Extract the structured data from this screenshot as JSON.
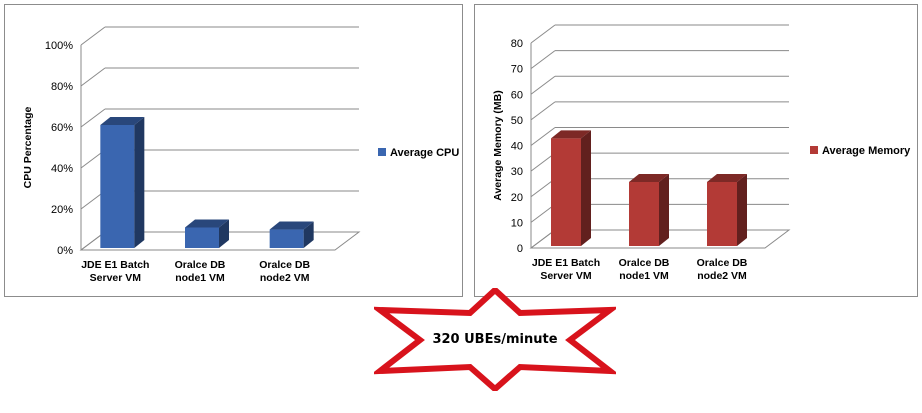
{
  "chart_data": [
    {
      "type": "bar",
      "categories": [
        "JDE E1 Batch Server VM",
        "Oralce DB node1 VM",
        "Oralce DB node2 VM"
      ],
      "category_lines": [
        [
          "JDE E1 Batch",
          "Server VM"
        ],
        [
          "Oralce DB",
          "node1 VM"
        ],
        [
          "Oralce DB",
          "node2 VM"
        ]
      ],
      "series": [
        {
          "name": "Average CPU",
          "values": [
            60,
            10,
            9
          ]
        }
      ],
      "title": "",
      "xlabel": "",
      "ylabel": "CPU Percentage",
      "ylim": [
        0,
        100
      ],
      "yticks": [
        0,
        20,
        40,
        60,
        80,
        100
      ],
      "ytick_labels": [
        "0%",
        "20%",
        "40%",
        "60%",
        "80%",
        "100%"
      ],
      "grid": true,
      "legend_position": "right",
      "bar_color": "#3a66b0",
      "three_d": true
    },
    {
      "type": "bar",
      "categories": [
        "JDE E1 Batch Server VM",
        "Oralce DB node1 VM",
        "Oralce DB node2 VM"
      ],
      "category_lines": [
        [
          "JDE E1 Batch",
          "Server VM"
        ],
        [
          "Oralce DB",
          "node1 VM"
        ],
        [
          "Oralce DB",
          "node2 VM"
        ]
      ],
      "series": [
        {
          "name": "Average Memory",
          "values": [
            42,
            25,
            25
          ]
        }
      ],
      "title": "",
      "xlabel": "",
      "ylabel": "Average Memory (MB)",
      "ylim": [
        0,
        80
      ],
      "yticks": [
        0,
        10,
        20,
        30,
        40,
        50,
        60,
        70,
        80
      ],
      "ytick_labels": [
        "0",
        "10",
        "20",
        "30",
        "40",
        "50",
        "60",
        "70",
        "80"
      ],
      "grid": true,
      "legend_position": "right",
      "bar_color": "#b33a36",
      "three_d": true
    }
  ],
  "callout": {
    "text": "320 UBEs/minute",
    "shape": "star",
    "border_color": "#d8131c"
  }
}
